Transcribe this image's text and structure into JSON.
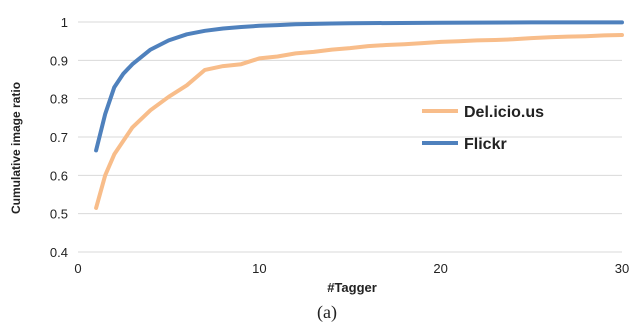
{
  "chart_data": {
    "type": "line",
    "title": "",
    "xlabel": "#Tagger",
    "ylabel": "Cumulative image ratio",
    "caption": "(a)",
    "xlim": [
      0,
      30
    ],
    "ylim": [
      0.4,
      1.0
    ],
    "x_ticks": [
      "0",
      "10",
      "20",
      "30"
    ],
    "y_ticks": [
      "0.4",
      "0.5",
      "0.6",
      "0.7",
      "0.8",
      "0.9",
      "1"
    ],
    "grid": "horizontal",
    "legend_position": "right",
    "series": [
      {
        "name": "Del.icio.us",
        "color": "#f8bd8a",
        "x": [
          1,
          1.5,
          2,
          3,
          4,
          5,
          6,
          7,
          8,
          9,
          10,
          11,
          12,
          13,
          14,
          15,
          16,
          17,
          18,
          19,
          20,
          21,
          22,
          23,
          24,
          25,
          26,
          27,
          28,
          29,
          30
        ],
        "y": [
          0.515,
          0.6,
          0.655,
          0.725,
          0.77,
          0.805,
          0.835,
          0.875,
          0.885,
          0.89,
          0.905,
          0.91,
          0.918,
          0.922,
          0.928,
          0.932,
          0.937,
          0.94,
          0.942,
          0.945,
          0.948,
          0.95,
          0.952,
          0.953,
          0.955,
          0.958,
          0.96,
          0.962,
          0.963,
          0.965,
          0.966
        ]
      },
      {
        "name": "Flickr",
        "color": "#4f81bd",
        "x": [
          1,
          1.5,
          2,
          2.5,
          3,
          4,
          5,
          6,
          7,
          8,
          9,
          10,
          11,
          12,
          13,
          14,
          15,
          20,
          25,
          30
        ],
        "y": [
          0.665,
          0.76,
          0.83,
          0.865,
          0.89,
          0.928,
          0.952,
          0.968,
          0.977,
          0.983,
          0.987,
          0.99,
          0.992,
          0.994,
          0.995,
          0.996,
          0.997,
          0.998,
          0.999,
          0.999
        ]
      }
    ]
  }
}
